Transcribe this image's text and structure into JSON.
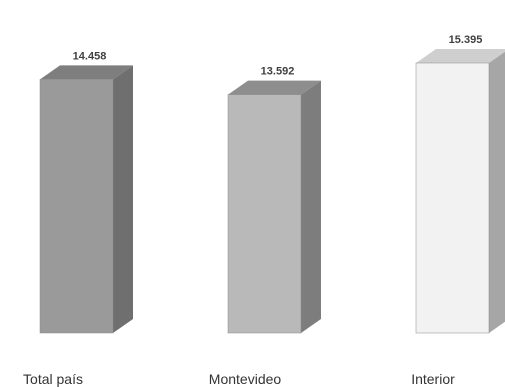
{
  "chart_data": {
    "type": "bar",
    "title": "",
    "categories": [
      "Total país",
      "Montevideo",
      "Interior"
    ],
    "values": [
      14458,
      13592,
      15395
    ],
    "value_labels": [
      "14.458",
      "13.592",
      "15.395"
    ],
    "ylim": [
      0,
      15395
    ],
    "grid": false,
    "legend": "none",
    "colors": {
      "bars": [
        {
          "front": "#9a9a9a",
          "side": "#6f6f6f",
          "top": "#7e7e7e"
        },
        {
          "front": "#b9b9b9",
          "side": "#7d7d7d",
          "top": "#8e8e8e"
        },
        {
          "front": "#f2f2f2",
          "side": "#a6a6a6",
          "top": "#cfcfcf"
        }
      ]
    }
  }
}
